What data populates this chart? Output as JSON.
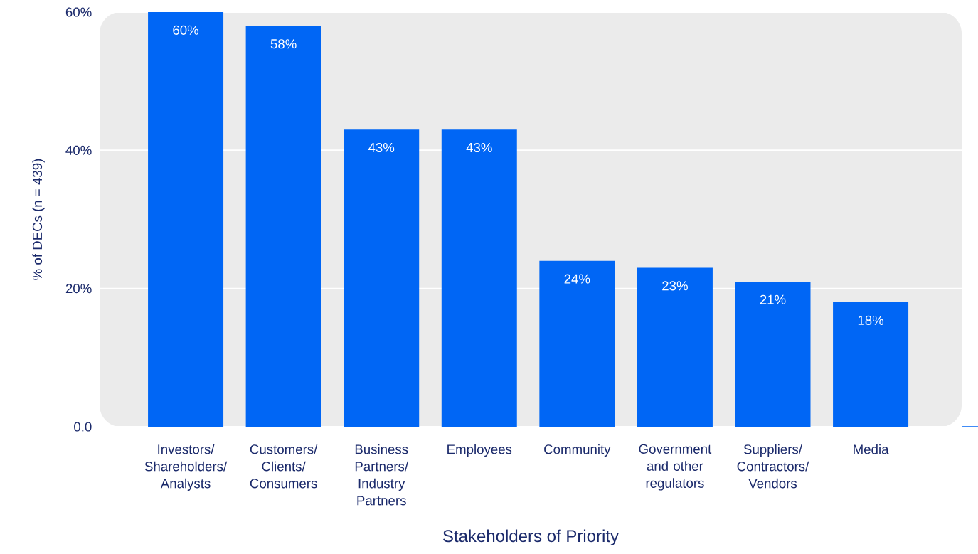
{
  "chart_data": {
    "type": "bar",
    "xlabel": "Stakeholders of Priority",
    "ylabel": "% of DECs (n = 439)",
    "categories": [
      "Investors/ Shareholders/ Analysts",
      "Customers/ Clients/ Consumers",
      "Business Partners/ Industry Partners",
      "Employees",
      "Community",
      "Government and other regulators",
      "Suppliers/ Contractors/ Vendors",
      "Media"
    ],
    "values": [
      60,
      58,
      43,
      43,
      24,
      23,
      21,
      18
    ],
    "value_labels": [
      "60%",
      "58%",
      "43%",
      "43%",
      "24%",
      "23%",
      "21%",
      "18%"
    ],
    "color": "#0066f5",
    "ylim": [
      0,
      60
    ],
    "yticks": [
      {
        "value": 0,
        "label": "0.0"
      },
      {
        "value": 20,
        "label": "20%"
      },
      {
        "value": 40,
        "label": "40%"
      },
      {
        "value": 60,
        "label": "60%"
      }
    ],
    "grid": "y"
  }
}
